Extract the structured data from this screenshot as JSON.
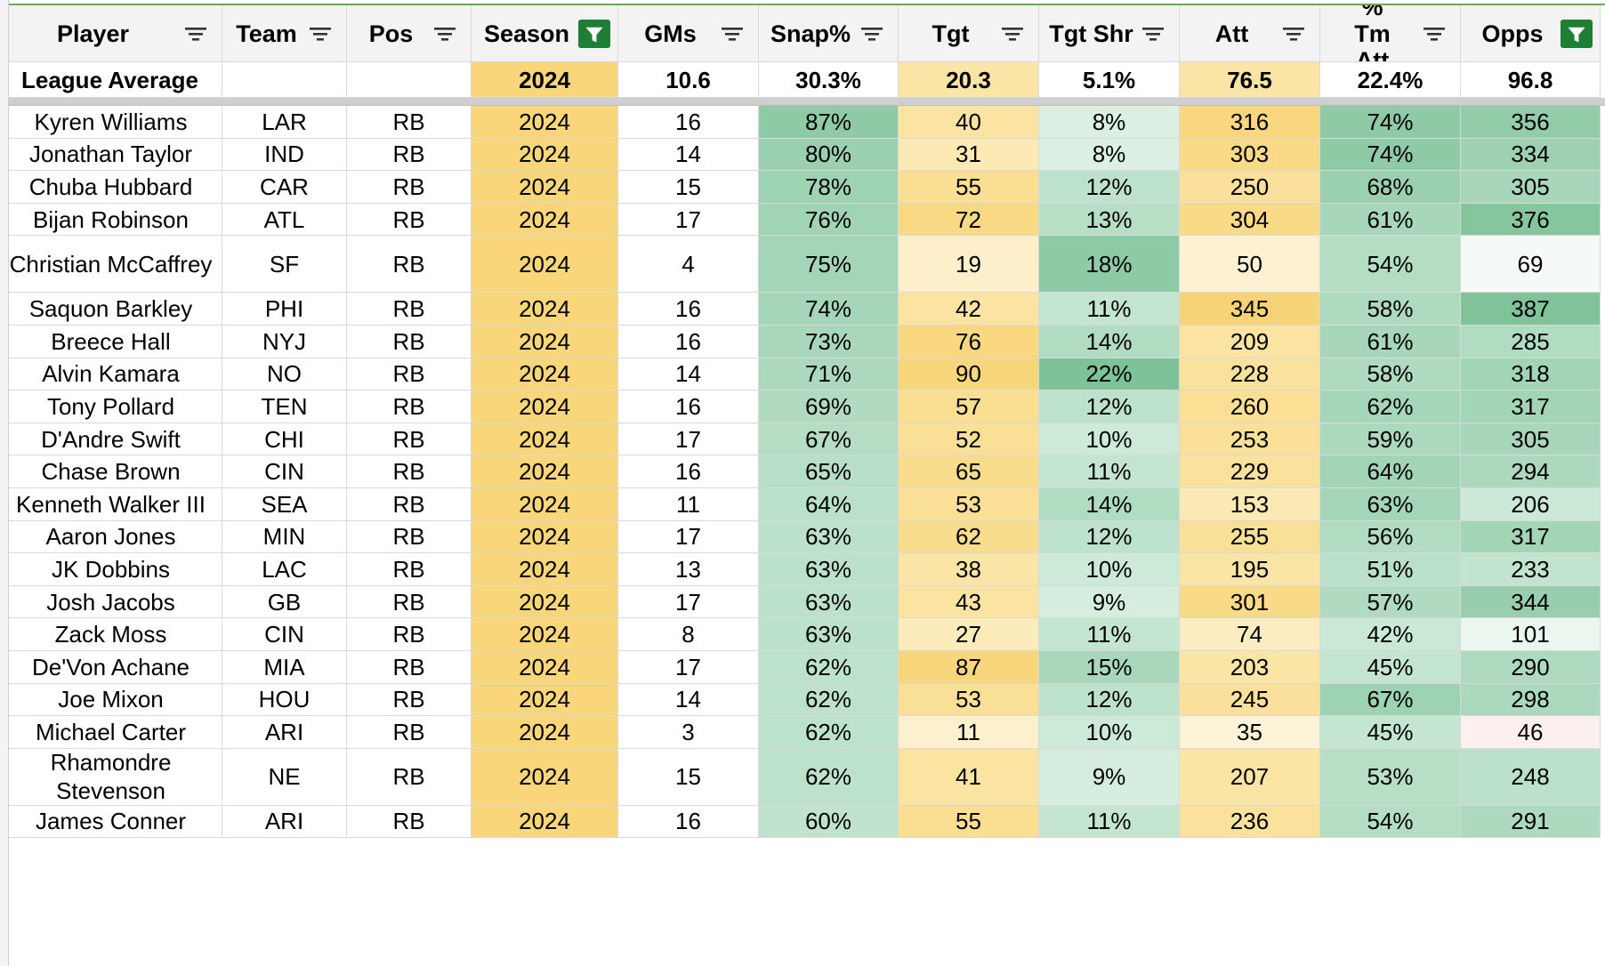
{
  "columns": [
    {
      "label": "Player",
      "filter_active": false
    },
    {
      "label": "Team",
      "filter_active": false
    },
    {
      "label": "Pos",
      "filter_active": false
    },
    {
      "label": "Season",
      "filter_active": true
    },
    {
      "label": "GMs",
      "filter_active": false
    },
    {
      "label": "Snap%",
      "filter_active": false
    },
    {
      "label": "Tgt",
      "filter_active": false
    },
    {
      "label": "Tgt Shr",
      "filter_active": false
    },
    {
      "label": "Att",
      "filter_active": false
    },
    {
      "label": "% Tm Att",
      "filter_active": false
    },
    {
      "label": "Opps",
      "filter_active": true
    }
  ],
  "league_average": [
    "League Average",
    "",
    "",
    "2024",
    "10.6",
    "30.3%",
    "20.3",
    "5.1%",
    "76.5",
    "22.4%",
    "96.8"
  ],
  "colors": {
    "header_bg": "#f3f3f3",
    "filter_active": "#1e7e34",
    "season_fill": "#f9d67a",
    "grid": "#d9d9d9"
  },
  "rows": [
    {
      "cells": [
        "Kyren Williams",
        "LAR",
        "RB",
        "2024",
        "16",
        "87%",
        "40",
        "8%",
        "316",
        "74%",
        "356"
      ],
      "bg": {
        "5": "#8fcaa6",
        "6": "#fbe4a2",
        "7": "#dcefe3",
        "8": "#f8d77e",
        "9": "#8fcaa6",
        "10": "#93cca9"
      }
    },
    {
      "cells": [
        "Jonathan Taylor",
        "IND",
        "RB",
        "2024",
        "14",
        "80%",
        "31",
        "8%",
        "303",
        "74%",
        "334"
      ],
      "bg": {
        "5": "#9ad0af",
        "6": "#fce9b3",
        "7": "#dcefe3",
        "8": "#f9da87",
        "9": "#8fcaa6",
        "10": "#9dd1b1"
      }
    },
    {
      "cells": [
        "Chuba Hubbard",
        "CAR",
        "RB",
        "2024",
        "15",
        "78%",
        "55",
        "12%",
        "250",
        "68%",
        "305"
      ],
      "bg": {
        "5": "#9dd2b2",
        "6": "#fadf93",
        "7": "#bde2cb",
        "8": "#fae09a",
        "9": "#9ad0af",
        "10": "#a8d6ba"
      }
    },
    {
      "cells": [
        "Bijan Robinson",
        "ATL",
        "RB",
        "2024",
        "17",
        "76%",
        "72",
        "13%",
        "304",
        "61%",
        "376"
      ],
      "bg": {
        "5": "#a1d3b5",
        "6": "#f9d984",
        "7": "#b6dfc6",
        "8": "#f9da87",
        "9": "#a8d6ba",
        "10": "#86c69f"
      }
    },
    {
      "cells": [
        "Christian McCaffrey",
        "SF",
        "RB",
        "2024",
        "4",
        "75%",
        "19",
        "18%",
        "50",
        "54%",
        "69"
      ],
      "bg": {
        "5": "#a4d5b8",
        "6": "#fdefc9",
        "7": "#8fcaa6",
        "8": "#fdf1d2",
        "9": "#b4dec4",
        "10": "#f6faf7"
      }
    },
    {
      "cells": [
        "Saquon Barkley",
        "PHI",
        "RB",
        "2024",
        "16",
        "74%",
        "42",
        "11%",
        "345",
        "58%",
        "387"
      ],
      "bg": {
        "5": "#a6d6b9",
        "6": "#fbe4a2",
        "7": "#c4e5d0",
        "8": "#f7d377",
        "9": "#aedbc0",
        "10": "#80c39a"
      }
    },
    {
      "cells": [
        "Breece Hall",
        "NYJ",
        "RB",
        "2024",
        "16",
        "73%",
        "76",
        "14%",
        "209",
        "61%",
        "285"
      ],
      "bg": {
        "5": "#a9d7bb",
        "6": "#f9d881",
        "7": "#b0dcc1",
        "8": "#fbe4a2",
        "9": "#a8d6ba",
        "10": "#b0dcc1"
      }
    },
    {
      "cells": [
        "Alvin Kamara",
        "NO",
        "RB",
        "2024",
        "14",
        "71%",
        "90",
        "22%",
        "228",
        "58%",
        "318"
      ],
      "bg": {
        "5": "#acd9be",
        "6": "#f8d67c",
        "7": "#7dc298",
        "8": "#fae19c",
        "9": "#aedbc0",
        "10": "#a2d4b6"
      }
    },
    {
      "cells": [
        "Tony Pollard",
        "TEN",
        "RB",
        "2024",
        "16",
        "69%",
        "57",
        "12%",
        "260",
        "62%",
        "317"
      ],
      "bg": {
        "5": "#b0dbc1",
        "6": "#fadf93",
        "7": "#bde2cb",
        "8": "#fadf95",
        "9": "#a6d6b9",
        "10": "#a2d4b6"
      }
    },
    {
      "cells": [
        "D'Andre Swift",
        "CHI",
        "RB",
        "2024",
        "17",
        "67%",
        "52",
        "10%",
        "253",
        "59%",
        "305"
      ],
      "bg": {
        "5": "#b4ddc4",
        "6": "#fae097",
        "7": "#cdead8",
        "8": "#fae098",
        "9": "#abd9bd",
        "10": "#a8d6ba"
      }
    },
    {
      "cells": [
        "Chase Brown",
        "CIN",
        "RB",
        "2024",
        "16",
        "65%",
        "65",
        "11%",
        "229",
        "64%",
        "294"
      ],
      "bg": {
        "5": "#b7dfc7",
        "6": "#f9dc8c",
        "7": "#c4e5d0",
        "8": "#fae19c",
        "9": "#a2d4b6",
        "10": "#acd9be"
      }
    },
    {
      "cells": [
        "Kenneth Walker III",
        "SEA",
        "RB",
        "2024",
        "11",
        "64%",
        "53",
        "14%",
        "153",
        "63%",
        "206"
      ],
      "bg": {
        "5": "#b9e0c8",
        "6": "#fae096",
        "7": "#b0dcc1",
        "8": "#fce9b3",
        "9": "#a4d5b8",
        "10": "#cce9d7"
      }
    },
    {
      "cells": [
        "Aaron Jones",
        "MIN",
        "RB",
        "2024",
        "17",
        "63%",
        "62",
        "12%",
        "255",
        "56%",
        "317"
      ],
      "bg": {
        "5": "#bbe1ca",
        "6": "#f9dd8e",
        "7": "#bde2cb",
        "8": "#fae097",
        "9": "#b1dcc2",
        "10": "#a2d4b6"
      }
    },
    {
      "cells": [
        "JK Dobbins",
        "LAC",
        "RB",
        "2024",
        "13",
        "63%",
        "38",
        "10%",
        "195",
        "51%",
        "233"
      ],
      "bg": {
        "5": "#bbe1ca",
        "6": "#fbe5a6",
        "7": "#cdead8",
        "8": "#fbe5a6",
        "9": "#b9e0c8",
        "10": "#c1e4ce"
      }
    },
    {
      "cells": [
        "Josh Jacobs",
        "GB",
        "RB",
        "2024",
        "17",
        "63%",
        "43",
        "9%",
        "301",
        "57%",
        "344"
      ],
      "bg": {
        "5": "#bbe1ca",
        "6": "#fbe4a2",
        "7": "#d5edde",
        "8": "#f9da87",
        "9": "#b0dbc1",
        "10": "#98cead"
      }
    },
    {
      "cells": [
        "Zack Moss",
        "CIN",
        "RB",
        "2024",
        "8",
        "63%",
        "27",
        "11%",
        "74",
        "42%",
        "101"
      ],
      "bg": {
        "5": "#bbe1ca",
        "6": "#fcebbb",
        "7": "#c4e5d0",
        "8": "#fcedc3",
        "9": "#c9e8d5",
        "10": "#ebf6ef"
      }
    },
    {
      "cells": [
        "De'Von Achane",
        "MIA",
        "RB",
        "2024",
        "17",
        "62%",
        "87",
        "15%",
        "203",
        "45%",
        "290"
      ],
      "bg": {
        "5": "#bde2cb",
        "6": "#f8d67c",
        "7": "#a9d7bb",
        "8": "#fbe5a4",
        "9": "#c4e5d0",
        "10": "#aedbc0"
      }
    },
    {
      "cells": [
        "Joe Mixon",
        "HOU",
        "RB",
        "2024",
        "14",
        "62%",
        "53",
        "12%",
        "245",
        "67%",
        "298"
      ],
      "bg": {
        "5": "#bde2cb",
        "6": "#fae096",
        "7": "#bde2cb",
        "8": "#fae09a",
        "9": "#9dd2b2",
        "10": "#abd9bd"
      }
    },
    {
      "cells": [
        "Michael Carter",
        "ARI",
        "RB",
        "2024",
        "3",
        "62%",
        "11",
        "10%",
        "35",
        "45%",
        "46"
      ],
      "bg": {
        "5": "#bde2cb",
        "6": "#fdf0cc",
        "7": "#cdead8",
        "8": "#fdf3d8",
        "9": "#c4e5d0",
        "10": "#fbf0ee"
      }
    },
    {
      "cells": [
        "Rhamondre Stevenson",
        "NE",
        "RB",
        "2024",
        "15",
        "62%",
        "41",
        "9%",
        "207",
        "53%",
        "248"
      ],
      "bg": {
        "5": "#bde2cb",
        "6": "#fbe4a2",
        "7": "#d5edde",
        "8": "#fbe5a4",
        "9": "#b6dfc6",
        "10": "#bbe1ca"
      }
    },
    {
      "cells": [
        "James Conner",
        "ARI",
        "RB",
        "2024",
        "16",
        "60%",
        "55",
        "11%",
        "236",
        "54%",
        "291"
      ],
      "bg": {
        "5": "#c0e3cd",
        "6": "#fadf93",
        "7": "#c4e5d0",
        "8": "#fae19c",
        "9": "#b4dec4",
        "10": "#adda bf"
      }
    }
  ]
}
